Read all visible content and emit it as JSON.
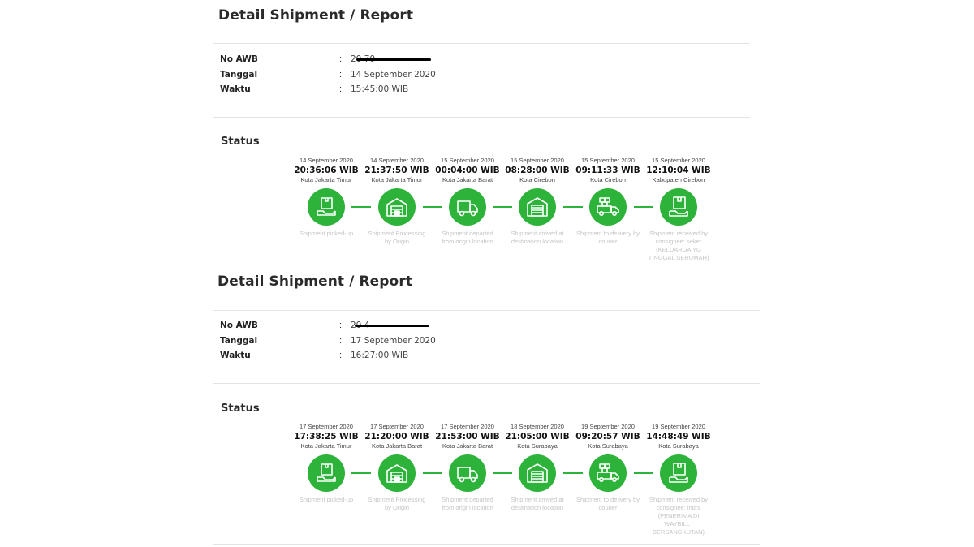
{
  "reports": [
    {
      "title": "Detail Shipment / Report",
      "info": [
        {
          "label": "No AWB",
          "colon": ":",
          "value": "20 70"
        },
        {
          "label": "Tanggal",
          "colon": ":",
          "value": "14 September 2020"
        },
        {
          "label": "Waktu",
          "colon": ":",
          "value": "15:45:00 WIB"
        }
      ],
      "status_title": "Status",
      "steps": [
        {
          "date": "14 September 2020",
          "time": "20:36:06 WIB",
          "location": "Kota Jakarta Timur",
          "icon": "package-pickup-icon",
          "desc": "Shipment picked-up"
        },
        {
          "date": "14 September 2020",
          "time": "21:37:50 WIB",
          "location": "Kota Jakarta Timur",
          "icon": "warehouse-icon",
          "desc": "Shipment Processing by Origin"
        },
        {
          "date": "15 September 2020",
          "time": "00:04:00 WIB",
          "location": "Kota Jakarta Barat",
          "icon": "truck-icon",
          "desc": "Shipment departed from origin location"
        },
        {
          "date": "15 September 2020",
          "time": "08:28:00 WIB",
          "location": "Kota Cirebon",
          "icon": "garage-icon",
          "desc": "Shipment arrived at destination location"
        },
        {
          "date": "15 September 2020",
          "time": "09:11:33 WIB",
          "location": "Kota Cirebon",
          "icon": "delivery-truck-icon",
          "desc": "Shipment to delivery by courier"
        },
        {
          "date": "15 September 2020",
          "time": "12:10:04 WIB",
          "location": "Kabupaten Cirebon",
          "icon": "package-received-icon",
          "desc": "Shipment received by consignee: seker (KELUARGA YG TINGGAL SERUMAH)"
        }
      ]
    },
    {
      "title": "Detail Shipment / Report",
      "info": [
        {
          "label": "No AWB",
          "colon": ":",
          "value": "20 4"
        },
        {
          "label": "Tanggal",
          "colon": ":",
          "value": "17 September 2020"
        },
        {
          "label": "Waktu",
          "colon": ":",
          "value": "16:27:00 WIB"
        }
      ],
      "status_title": "Status",
      "steps": [
        {
          "date": "17 September 2020",
          "time": "17:38:25 WIB",
          "location": "Kota Jakarta Timur",
          "icon": "package-pickup-icon",
          "desc": "Shipment picked-up"
        },
        {
          "date": "17 September 2020",
          "time": "21:20:00 WIB",
          "location": "Kota Jakarta Barat",
          "icon": "warehouse-icon",
          "desc": "Shipment Processing by Origin"
        },
        {
          "date": "17 September 2020",
          "time": "21:53:00 WIB",
          "location": "Kota Jakarta Barat",
          "icon": "truck-icon",
          "desc": "Shipment departed from origin location"
        },
        {
          "date": "18 September 2020",
          "time": "21:05:00 WIB",
          "location": "Kota Surabaya",
          "icon": "garage-icon",
          "desc": "Shipment arrived at destination location"
        },
        {
          "date": "19 September 2020",
          "time": "09:20:57 WIB",
          "location": "Kota Surabaya",
          "icon": "delivery-truck-icon",
          "desc": "Shipment to delivery by courier"
        },
        {
          "date": "19 September 2020",
          "time": "14:48:49 WIB",
          "location": "Kota Surabaya",
          "icon": "package-received-icon",
          "desc": "Shipment received by consignee: indra (PENERIMA DI WAYBILL | BERSANGKUTAN)"
        }
      ]
    }
  ],
  "colors": {
    "accent": "#2db33a",
    "muted": "#c5c5c5",
    "divider": "#e3e3e3"
  }
}
